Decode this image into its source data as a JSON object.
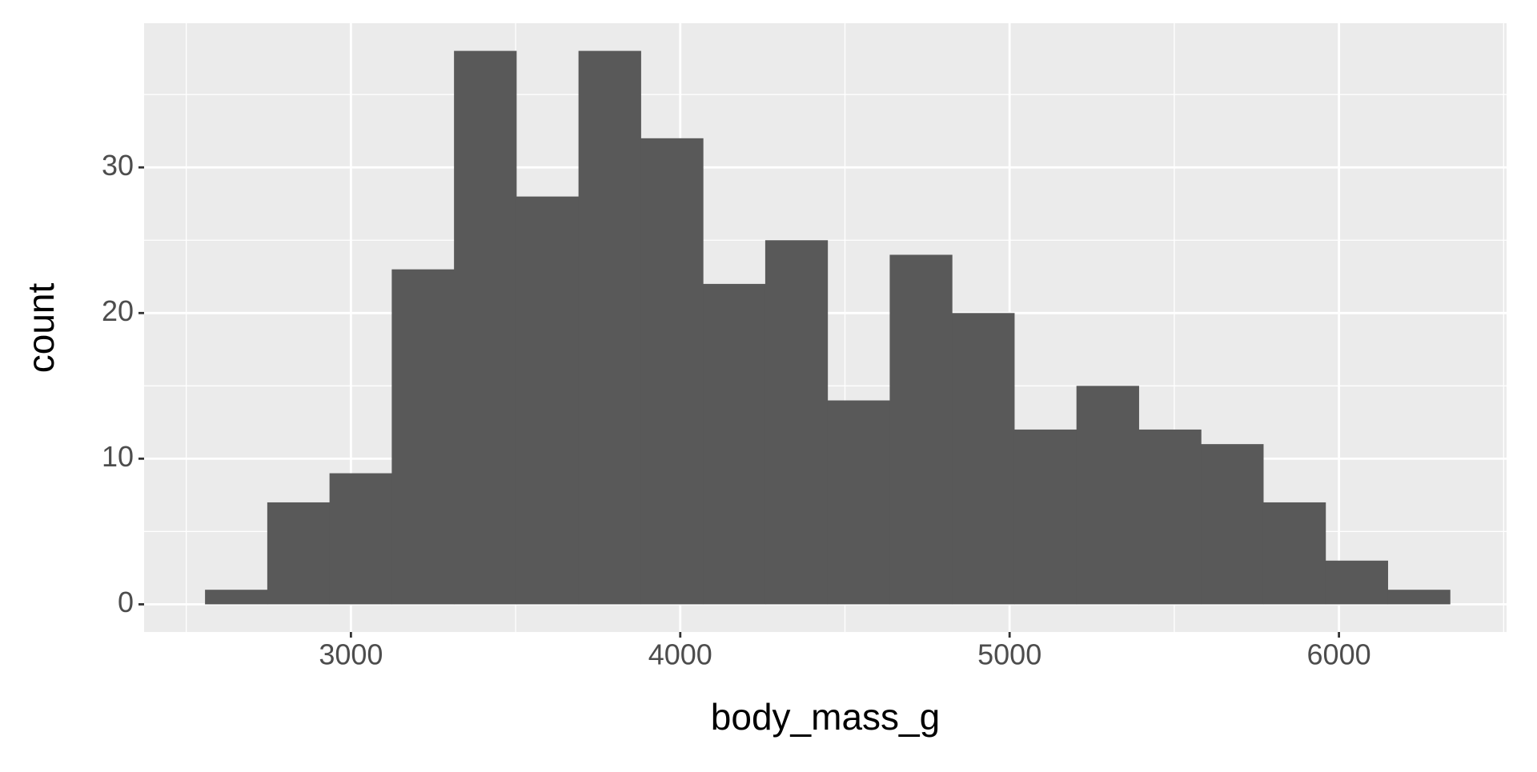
{
  "chart_data": {
    "type": "histogram",
    "x_label": "body_mass_g",
    "y_label": "count",
    "bins": [
      2557,
      2746,
      2935,
      3124,
      3313,
      3502,
      3691,
      3880,
      4069,
      4258,
      4447,
      4636,
      4825,
      5014,
      5203,
      5392,
      5581,
      5770,
      5959,
      6148,
      6337
    ],
    "counts": [
      1,
      7,
      9,
      23,
      38,
      28,
      38,
      32,
      22,
      25,
      14,
      24,
      20,
      12,
      15,
      12,
      11,
      7,
      3,
      1
    ],
    "color": "#595959",
    "xlim": [
      2372,
      6509
    ],
    "ylim": [
      -1.9,
      39.9
    ],
    "xticks": [
      3000,
      4000,
      5000,
      6000
    ],
    "yticks": [
      0,
      10,
      20,
      30
    ],
    "grid": true
  }
}
